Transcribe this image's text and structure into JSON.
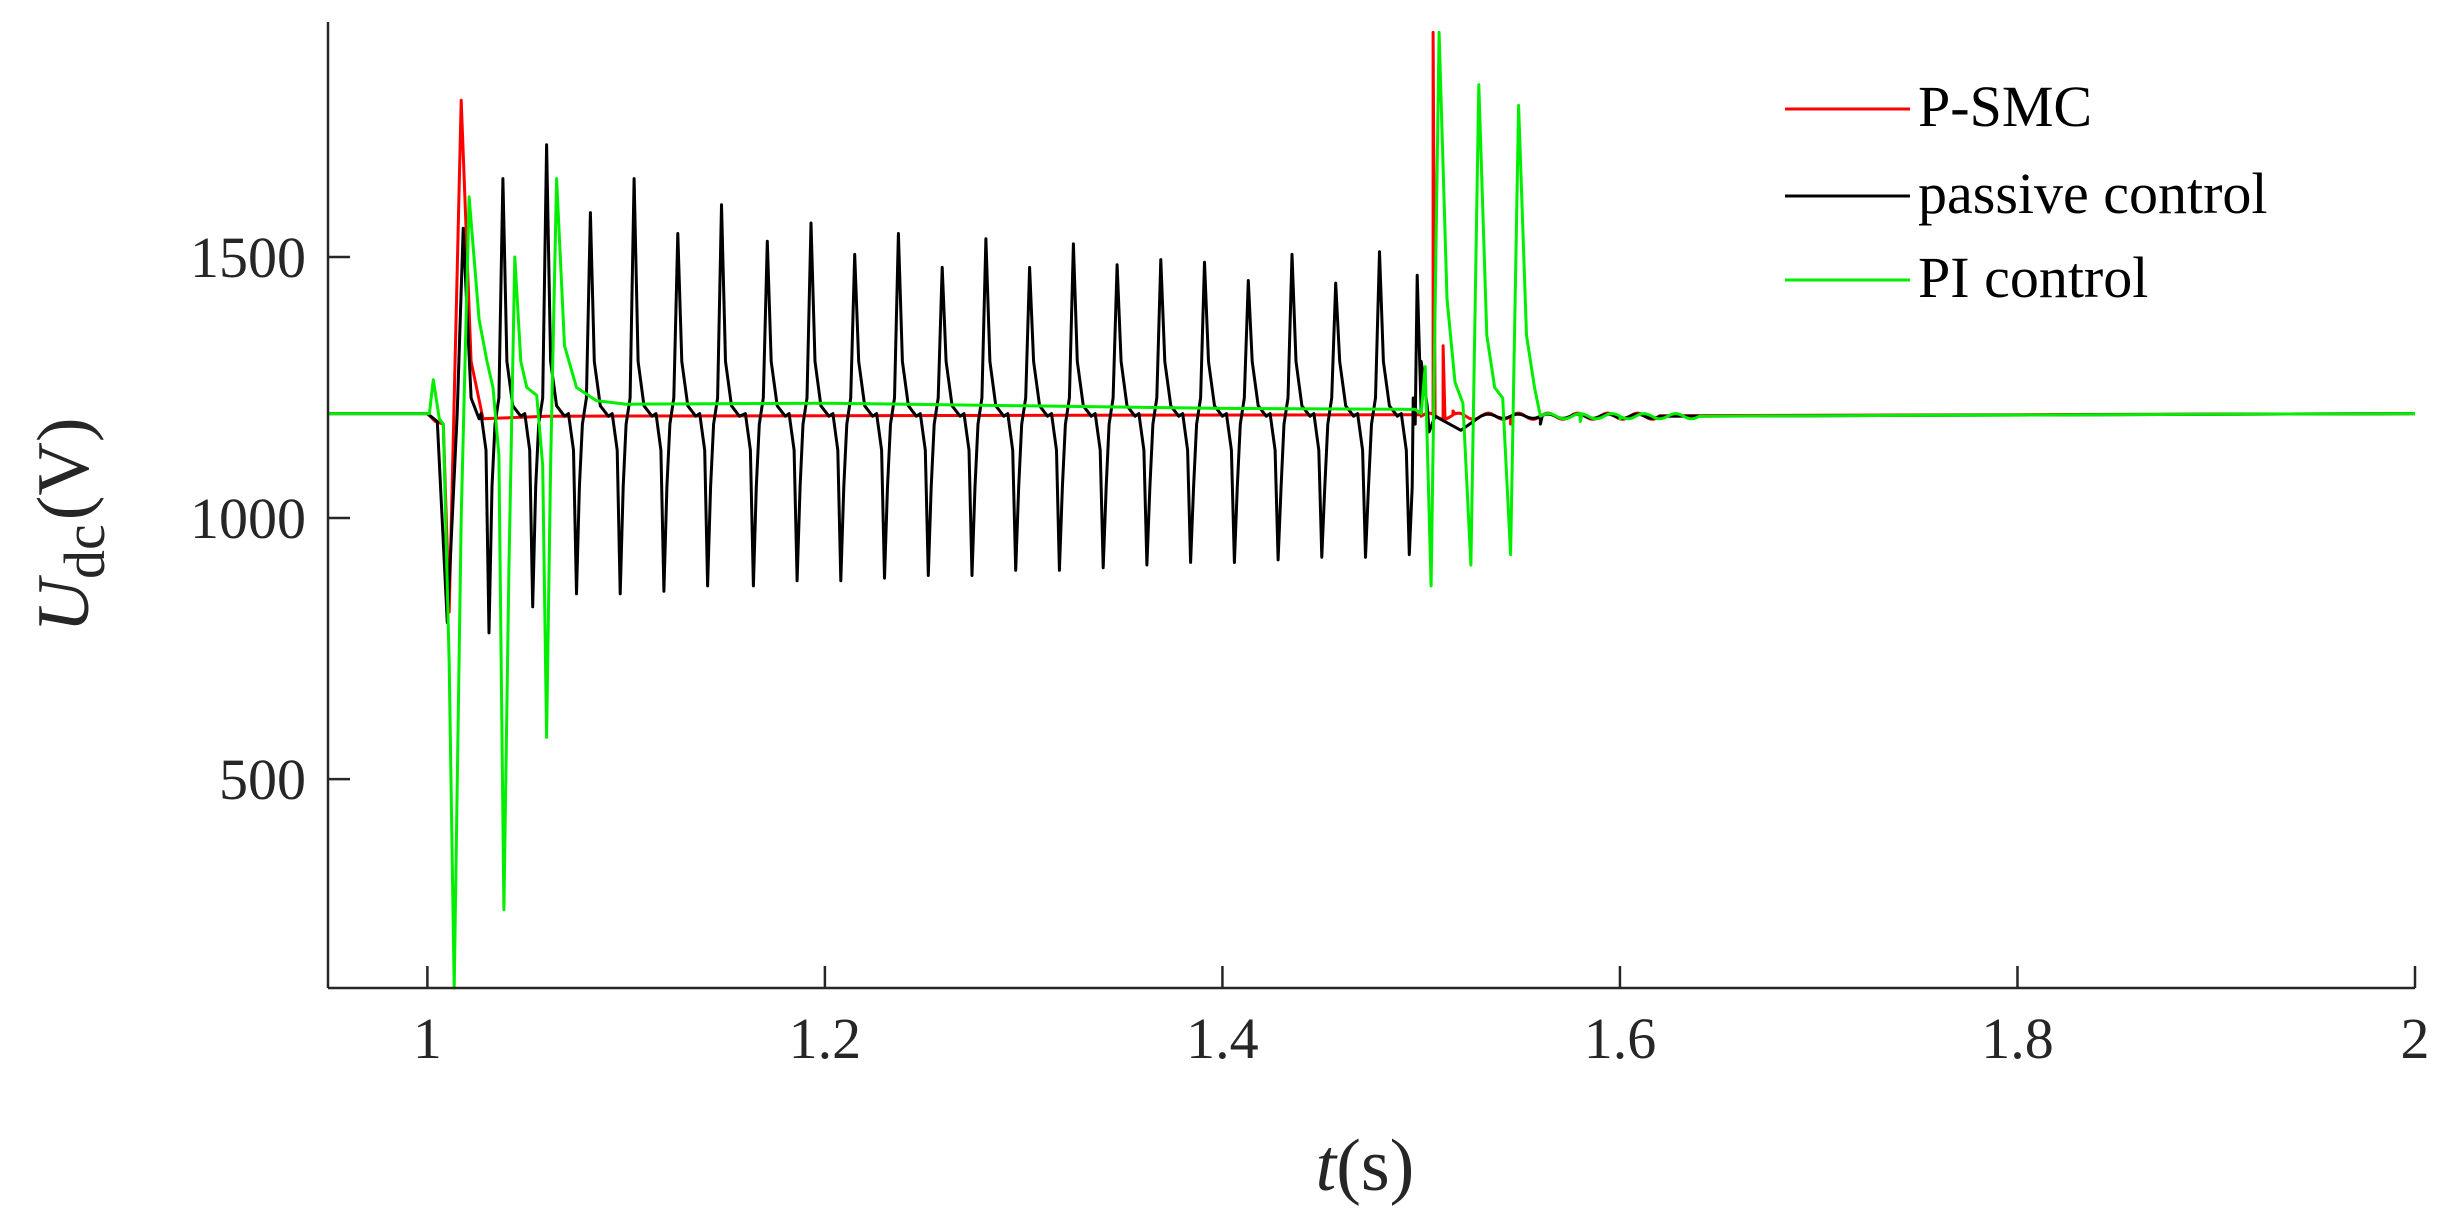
{
  "chart_data": {
    "type": "line",
    "xlabel": {
      "italic": "t",
      "rest": "(s)"
    },
    "ylabel": {
      "italic": "U",
      "sub": "dc",
      "rest": "(V)"
    },
    "xlim": [
      0.95,
      2.0
    ],
    "ylim": [
      100,
      1950
    ],
    "xticks": [
      1,
      1.2,
      1.4,
      1.6,
      1.8,
      2
    ],
    "xtick_labels": [
      "1",
      "1.2",
      "1.4",
      "1.6",
      "1.8",
      "2"
    ],
    "yticks": [
      500,
      1000,
      1500
    ],
    "ytick_labels": [
      "500",
      "1000",
      "1500"
    ],
    "grid": false,
    "legend_position": "top-right",
    "series": [
      {
        "name": "P-SMC",
        "color": "#ff0000",
        "events": [
          {
            "x0": 1.0,
            "p": [
              [
                0.004,
                1185
              ],
              [
                0.008,
                1180
              ],
              [
                0.011,
                820
              ],
              [
                0.017,
                1800
              ],
              [
                0.022,
                1300
              ],
              [
                0.028,
                1190
              ],
              [
                0.06,
                1195
              ],
              [
                0.5,
                1198
              ]
            ]
          },
          {
            "x0": 1.5,
            "p": [
              [
                0.003,
                1200
              ],
              [
                0.006,
                1930
              ],
              [
                0.011,
                1330
              ],
              [
                0.016,
                1205
              ],
              [
                0.025,
                1190
              ],
              [
                0.045,
                1180
              ],
              [
                0.06,
                1188
              ],
              [
                0.08,
                1193
              ],
              [
                0.12,
                1196
              ],
              [
                0.3,
                1198
              ],
              [
                0.5,
                1200
              ]
            ]
          }
        ],
        "osc": [
          [
            1.5,
            1.62,
            6,
            0.015
          ]
        ]
      },
      {
        "name": "passive control",
        "color": "#000000",
        "events": [
          {
            "x0": 1.0,
            "p": [
              [
                0.005,
                1185
              ],
              [
                0.01,
                800
              ],
              [
                0.015,
                1200
              ],
              [
                0.018,
                1555
              ],
              [
                0.022,
                1230
              ],
              [
                0.026,
                1190
              ]
            ]
          },
          {
            "x0": 1.5,
            "p": [
              [
                0.004,
                1165
              ],
              [
                0.02,
                1168
              ],
              [
                0.06,
                1180
              ],
              [
                0.1,
                1190
              ],
              [
                0.2,
                1196
              ],
              [
                0.5,
                1200
              ]
            ]
          }
        ],
        "spikes": [
          [
            1.031,
            780,
            1.038,
            1650
          ],
          [
            1.053,
            830,
            1.06,
            1715
          ],
          [
            1.075,
            855,
            1.082,
            1585
          ],
          [
            1.097,
            855,
            1.104,
            1650
          ],
          [
            1.119,
            860,
            1.126,
            1545
          ],
          [
            1.141,
            870,
            1.148,
            1600
          ],
          [
            1.164,
            870,
            1.171,
            1530
          ],
          [
            1.186,
            880,
            1.193,
            1565
          ],
          [
            1.208,
            880,
            1.215,
            1505
          ],
          [
            1.23,
            885,
            1.237,
            1545
          ],
          [
            1.252,
            890,
            1.259,
            1480
          ],
          [
            1.274,
            890,
            1.281,
            1535
          ],
          [
            1.296,
            900,
            1.303,
            1480
          ],
          [
            1.318,
            900,
            1.325,
            1525
          ],
          [
            1.34,
            905,
            1.347,
            1485
          ],
          [
            1.362,
            910,
            1.369,
            1495
          ],
          [
            1.384,
            915,
            1.391,
            1490
          ],
          [
            1.406,
            915,
            1.413,
            1455
          ],
          [
            1.428,
            920,
            1.435,
            1505
          ],
          [
            1.45,
            925,
            1.457,
            1450
          ],
          [
            1.472,
            925,
            1.479,
            1510
          ],
          [
            1.494,
            930,
            1.498,
            1465
          ]
        ],
        "osc": [
          [
            1.53,
            1.62,
            4,
            0.015
          ]
        ]
      },
      {
        "name": "PI control",
        "color": "#00ee00",
        "events": [
          {
            "x0": 1.0,
            "p": [
              [
                0.001,
                1200
              ],
              [
                0.003,
                1265
              ],
              [
                0.006,
                1190
              ],
              [
                0.008,
                1180
              ],
              [
                0.011,
                720
              ],
              [
                0.0135,
                100
              ],
              [
                0.017,
                1000
              ],
              [
                0.021,
                1615
              ],
              [
                0.026,
                1380
              ],
              [
                0.03,
                1300
              ],
              [
                0.033,
                1250
              ],
              [
                0.036,
                1120
              ],
              [
                0.0385,
                250
              ],
              [
                0.041,
                900
              ],
              [
                0.044,
                1500
              ],
              [
                0.047,
                1300
              ],
              [
                0.05,
                1250
              ],
              [
                0.055,
                1235
              ],
              [
                0.058,
                1100
              ],
              [
                0.06,
                580
              ],
              [
                0.062,
                1100
              ],
              [
                0.065,
                1650
              ],
              [
                0.069,
                1330
              ],
              [
                0.075,
                1250
              ],
              [
                0.085,
                1225
              ],
              [
                0.1,
                1218
              ],
              [
                0.2,
                1220
              ],
              [
                0.3,
                1215
              ],
              [
                0.4,
                1210
              ],
              [
                0.497,
                1208
              ]
            ]
          },
          {
            "x0": 1.5,
            "p": [
              [
                0.002,
                1290
              ],
              [
                0.005,
                870
              ],
              [
                0.009,
                1930
              ],
              [
                0.013,
                1420
              ],
              [
                0.017,
                1260
              ],
              [
                0.021,
                1220
              ],
              [
                0.025,
                910
              ],
              [
                0.029,
                1830
              ],
              [
                0.033,
                1350
              ],
              [
                0.037,
                1250
              ],
              [
                0.041,
                1230
              ],
              [
                0.045,
                930
              ],
              [
                0.049,
                1790
              ],
              [
                0.053,
                1350
              ],
              [
                0.057,
                1250
              ],
              [
                0.065,
                1200
              ],
              [
                0.08,
                1185
              ],
              [
                0.1,
                1190
              ],
              [
                0.2,
                1196
              ],
              [
                0.5,
                1200
              ]
            ]
          }
        ],
        "osc": [
          [
            1.56,
            1.64,
            5,
            0.016
          ]
        ]
      }
    ]
  }
}
